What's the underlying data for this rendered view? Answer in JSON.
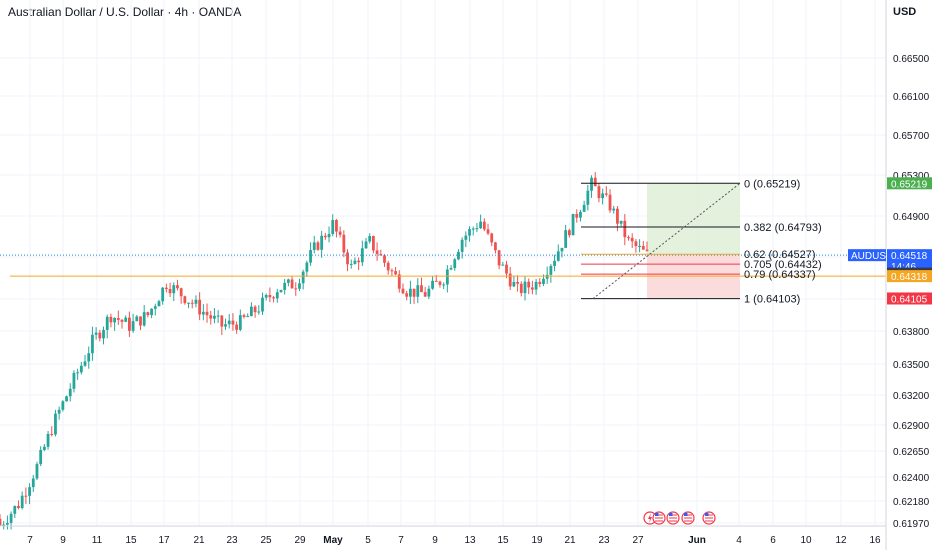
{
  "header": {
    "title": "Australian Dollar / U.S. Dollar · 4h · OANDA",
    "currency": "USD"
  },
  "colors": {
    "up": "#26a69a",
    "down": "#ef5350",
    "fib": "#131722",
    "fib_62": "#f5a623",
    "fib_705": "#f23645",
    "fib_79": "#f23645",
    "target_zone": "#dcedd5",
    "stop_zone": "#fbd8d8",
    "horizontal_line": "#f5a623",
    "last_price_line": "#1e88e5"
  },
  "price_axis": {
    "ticks": [
      "0.66500",
      "0.66100",
      "0.65700",
      "0.65300",
      "0.64900",
      "0.64500",
      "0.64100",
      "0.63800",
      "0.63500",
      "0.63200",
      "0.62900",
      "0.62650",
      "0.62400",
      "0.62180",
      "0.61970"
    ],
    "range": [
      0.6193,
      0.6695
    ]
  },
  "time_axis": {
    "labels": [
      "7",
      "9",
      "11",
      "15",
      "17",
      "21",
      "23",
      "25",
      "29",
      "May",
      "5",
      "7",
      "9",
      "13",
      "15",
      "19",
      "21",
      "23",
      "27",
      "Jun",
      "4",
      "6",
      "10",
      "12",
      "16"
    ]
  },
  "price_tags": {
    "fib0": "0.65219",
    "symbol": "AUDUSD",
    "last": "0.64518",
    "countdown": "14:46",
    "t_64342": "0.64342",
    "t_64318": "0.64318",
    "t_64105": "0.64105"
  },
  "fib_labels": {
    "f0": "0 (0.65219)",
    "f382": "0.382 (0.64793)",
    "f62": "0.62 (0.64527)",
    "f705": "0.705 (0.64432)",
    "f79": "0.79 (0.64337)",
    "f1": "1 (0.64103)"
  },
  "events_icons": [
    "lightning-icon",
    "us-flag-icon",
    "us-flag-icon",
    "us-flag-icon",
    "us-flag-icon"
  ],
  "chart_data": {
    "type": "candlestick",
    "title": "Australian Dollar / U.S. Dollar · 4h · OANDA",
    "ylabel": "USD",
    "ylim": [
      0.6193,
      0.6695
    ],
    "grid": true,
    "series": [
      {
        "name": "AUDUSD",
        "values": [
          0.6195,
          0.6215,
          0.625,
          0.6296,
          0.6335,
          0.637,
          0.6395,
          0.6385,
          0.6395,
          0.6425,
          0.6412,
          0.6398,
          0.6385,
          0.6388,
          0.6402,
          0.642,
          0.6425,
          0.6458,
          0.6482,
          0.644,
          0.6465,
          0.644,
          0.6418,
          0.6415,
          0.643,
          0.6468,
          0.6485,
          0.6445,
          0.6418,
          0.6425,
          0.645,
          0.6485,
          0.6521,
          0.65,
          0.6465,
          0.6452
        ]
      },
      {
        "name": "Fibonacci levels",
        "values": [
          0.65219,
          0.64793,
          0.64527,
          0.64432,
          0.64337,
          0.64103
        ]
      },
      {
        "name": "Horizontal line",
        "values": [
          0.64318
        ]
      }
    ],
    "last_price": 0.64518
  }
}
